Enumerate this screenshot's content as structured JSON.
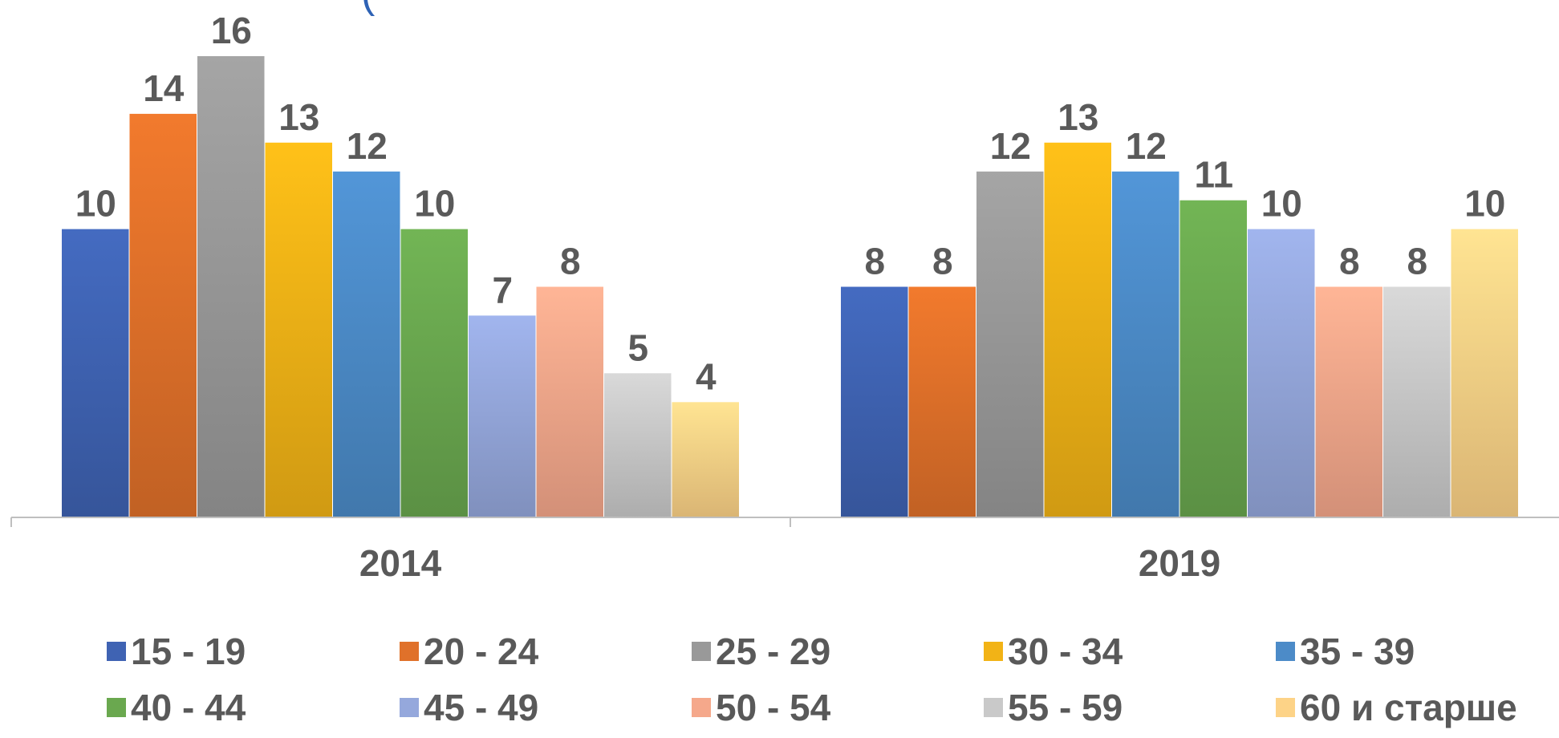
{
  "title_partial": "(",
  "chart_data": {
    "type": "bar",
    "categories": [
      "2014",
      "2019"
    ],
    "series": [
      {
        "name": "15 - 19",
        "values": [
          10,
          8
        ],
        "color": "#3f63b3"
      },
      {
        "name": "20 - 24",
        "values": [
          14,
          8
        ],
        "color": "#e0712a"
      },
      {
        "name": "25 - 29",
        "values": [
          16,
          12
        ],
        "color": "#999999"
      },
      {
        "name": "30 - 34",
        "values": [
          13,
          13
        ],
        "color": "#f2b316"
      },
      {
        "name": "35 - 39",
        "values": [
          12,
          12
        ],
        "color": "#4c8bc8"
      },
      {
        "name": "40 - 44",
        "values": [
          10,
          11
        ],
        "color": "#6aa84f"
      },
      {
        "name": "45 - 49",
        "values": [
          7,
          10
        ],
        "color": "#95a8dc"
      },
      {
        "name": "50 - 54",
        "values": [
          8,
          8
        ],
        "color": "#f5a88b"
      },
      {
        "name": "55 - 59",
        "values": [
          5,
          8
        ],
        "color": "#c9c9c9"
      },
      {
        "name": "60 и старше",
        "values": [
          4,
          10
        ],
        "color": "#fdd387"
      }
    ],
    "ylim": [
      0,
      16
    ],
    "grid": false,
    "legend_position": "bottom",
    "data_labels": true
  }
}
